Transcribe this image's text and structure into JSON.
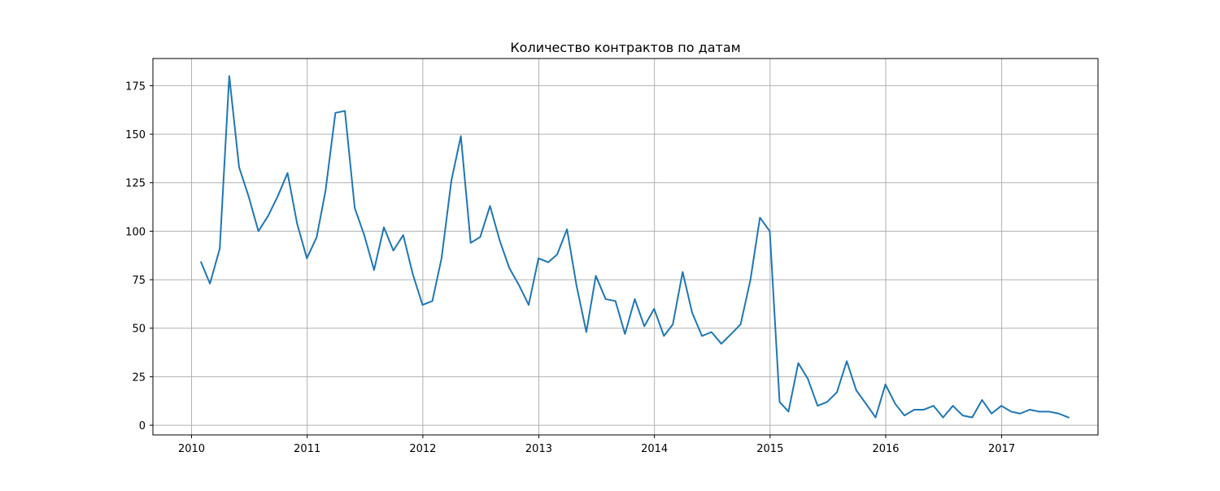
{
  "chart_data": {
    "type": "line",
    "title": "Количество контрактов по датам",
    "xlabel": "",
    "ylabel": "",
    "x_axis_kind": "date",
    "xlim": [
      "2009-09-01",
      "2017-11-01"
    ],
    "ylim": [
      -5,
      189
    ],
    "x_ticks": [
      {
        "label": "2010",
        "date": "2010-01-01"
      },
      {
        "label": "2011",
        "date": "2011-01-01"
      },
      {
        "label": "2012",
        "date": "2012-01-01"
      },
      {
        "label": "2013",
        "date": "2013-01-01"
      },
      {
        "label": "2014",
        "date": "2014-01-01"
      },
      {
        "label": "2015",
        "date": "2015-01-01"
      },
      {
        "label": "2016",
        "date": "2016-01-01"
      },
      {
        "label": "2017",
        "date": "2017-01-01"
      }
    ],
    "y_ticks": [
      {
        "label": "0",
        "value": 0
      },
      {
        "label": "25",
        "value": 25
      },
      {
        "label": "50",
        "value": 50
      },
      {
        "label": "75",
        "value": 75
      },
      {
        "label": "100",
        "value": 100
      },
      {
        "label": "125",
        "value": 125
      },
      {
        "label": "150",
        "value": 150
      },
      {
        "label": "175",
        "value": 175
      }
    ],
    "grid": true,
    "legend": "none",
    "series": [
      {
        "color": "#1f77b4",
        "x": [
          "2010-01-31",
          "2010-02-28",
          "2010-03-31",
          "2010-04-30",
          "2010-05-31",
          "2010-06-30",
          "2010-07-31",
          "2010-08-31",
          "2010-09-30",
          "2010-10-31",
          "2010-11-30",
          "2010-12-31",
          "2011-01-31",
          "2011-02-28",
          "2011-03-31",
          "2011-04-30",
          "2011-05-31",
          "2011-06-30",
          "2011-07-31",
          "2011-08-31",
          "2011-09-30",
          "2011-10-31",
          "2011-11-30",
          "2011-12-31",
          "2012-01-31",
          "2012-02-29",
          "2012-03-31",
          "2012-04-30",
          "2012-05-31",
          "2012-06-30",
          "2012-07-31",
          "2012-08-31",
          "2012-09-30",
          "2012-10-31",
          "2012-11-30",
          "2012-12-31",
          "2013-01-31",
          "2013-02-28",
          "2013-03-31",
          "2013-04-30",
          "2013-05-31",
          "2013-06-30",
          "2013-07-31",
          "2013-08-31",
          "2013-09-30",
          "2013-10-31",
          "2013-11-30",
          "2013-12-31",
          "2014-01-31",
          "2014-02-28",
          "2014-03-31",
          "2014-04-30",
          "2014-05-31",
          "2014-06-30",
          "2014-07-31",
          "2014-08-31",
          "2014-09-30",
          "2014-10-31",
          "2014-11-30",
          "2014-12-31",
          "2015-01-31",
          "2015-02-28",
          "2015-03-31",
          "2015-04-30",
          "2015-05-31",
          "2015-06-30",
          "2015-07-31",
          "2015-08-31",
          "2015-09-30",
          "2015-10-31",
          "2015-11-30",
          "2015-12-31",
          "2016-01-31",
          "2016-02-29",
          "2016-03-31",
          "2016-04-30",
          "2016-05-31",
          "2016-06-30",
          "2016-07-31",
          "2016-08-31",
          "2016-09-30",
          "2016-10-31",
          "2016-11-30",
          "2016-12-31",
          "2017-01-31",
          "2017-02-28",
          "2017-03-31",
          "2017-04-30",
          "2017-05-31",
          "2017-06-30",
          "2017-07-31"
        ],
        "y": [
          84,
          73,
          91,
          180,
          133,
          118,
          100,
          108,
          118,
          130,
          104,
          86,
          97,
          121,
          161,
          162,
          112,
          98,
          80,
          102,
          90,
          98,
          78,
          62,
          64,
          86,
          126,
          149,
          94,
          97,
          113,
          95,
          81,
          72,
          62,
          86,
          84,
          88,
          101,
          72,
          48,
          77,
          65,
          64,
          47,
          65,
          51,
          60,
          46,
          52,
          79,
          58,
          46,
          48,
          42,
          47,
          52,
          75,
          107,
          100,
          12,
          7,
          32,
          24,
          10,
          12,
          17,
          33,
          18,
          11,
          4,
          21,
          11,
          5,
          8,
          8,
          10,
          4,
          10,
          5,
          4,
          13,
          6,
          10,
          7,
          6,
          8,
          7,
          7,
          6,
          4
        ]
      }
    ]
  }
}
